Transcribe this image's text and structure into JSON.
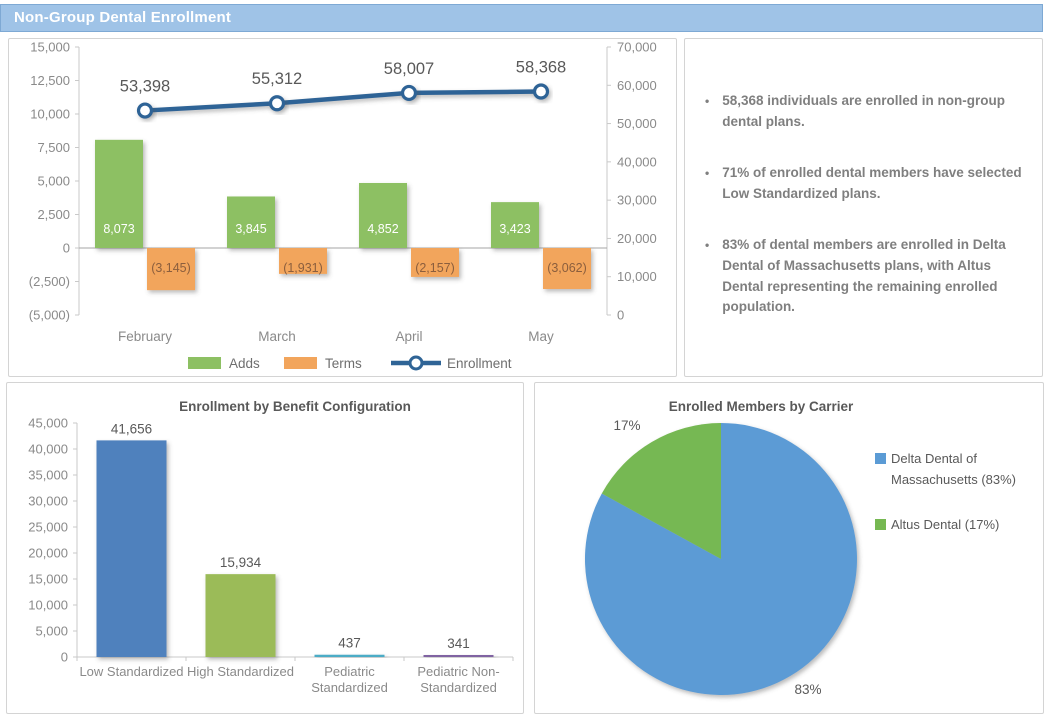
{
  "header": {
    "title": "Non-Group Dental Enrollment",
    "accent_color": "#9FC3E7"
  },
  "insights": {
    "bullets": [
      "58,368 individuals are enrolled in non-group dental plans.",
      "71% of enrolled dental members have selected Low Standardized plans.",
      "83% of dental members are enrolled in Delta Dental of Massachusetts plans, with Altus Dental representing the remaining enrolled population."
    ]
  },
  "chart_data": [
    {
      "type": "combo",
      "name": "monthly-enrollment-trend",
      "categories": [
        "February",
        "March",
        "April",
        "May"
      ],
      "series": [
        {
          "name": "Adds",
          "type": "bar",
          "axis": "left",
          "values": [
            8073,
            3845,
            4852,
            3423
          ],
          "labels": [
            "8,073",
            "3,845",
            "4,852",
            "3,423"
          ],
          "color": "#8DC063",
          "label_color": "#FFFFFF"
        },
        {
          "name": "Terms",
          "type": "bar",
          "axis": "left",
          "values": [
            -3145,
            -1931,
            -2157,
            -3062
          ],
          "labels": [
            "(3,145)",
            "(1,931)",
            "(2,157)",
            "(3,062)"
          ],
          "color": "#F2A55C",
          "label_color": "#8B5E3D"
        },
        {
          "name": "Enrollment",
          "type": "line",
          "axis": "right",
          "values": [
            53398,
            55312,
            58007,
            58368
          ],
          "labels": [
            "53,398",
            "55,312",
            "58,007",
            "58,368"
          ],
          "color": "#2F6496"
        }
      ],
      "left_axis": {
        "min": -5000,
        "max": 15000,
        "tick_values": [
          15000,
          12500,
          10000,
          7500,
          5000,
          2500,
          0,
          -2500,
          -5000
        ],
        "tick_labels": [
          "15,000",
          "12,500",
          "10,000",
          "7,500",
          "5,000",
          "2,500",
          "0",
          "(2,500)",
          "(5,000)"
        ]
      },
      "right_axis": {
        "min": 0,
        "max": 70000,
        "tick_values": [
          70000,
          60000,
          50000,
          40000,
          30000,
          20000,
          10000,
          0
        ],
        "tick_labels": [
          "70,000",
          "60,000",
          "50,000",
          "40,000",
          "30,000",
          "20,000",
          "10,000",
          "0"
        ]
      },
      "legend_position": "bottom",
      "grid": false
    },
    {
      "type": "bar",
      "title": "Enrollment by Benefit Configuration",
      "categories": [
        [
          "Low Standardized"
        ],
        [
          "High Standardized"
        ],
        [
          "Pediatric",
          "Standardized"
        ],
        [
          "Pediatric Non-",
          "Standardized"
        ]
      ],
      "values": [
        41656,
        15934,
        437,
        341
      ],
      "labels": [
        "41,656",
        "15,934",
        "437",
        "341"
      ],
      "bar_colors": [
        "#4F81BD",
        "#9BBB59",
        "#4BACC6",
        "#8064A2"
      ],
      "y_axis": {
        "min": 0,
        "max": 45000,
        "tick_values": [
          45000,
          40000,
          35000,
          30000,
          25000,
          20000,
          15000,
          10000,
          5000,
          0
        ],
        "tick_labels": [
          "45,000",
          "40,000",
          "35,000",
          "30,000",
          "25,000",
          "20,000",
          "15,000",
          "10,000",
          "5,000",
          "0"
        ]
      },
      "grid": false,
      "legend_position": "none"
    },
    {
      "type": "pie",
      "title": "Enrolled Members by Carrier",
      "slices": [
        {
          "name": "Delta Dental of Massachusetts",
          "value": 83,
          "data_label": "83%",
          "legend_lines": [
            "Delta Dental of",
            "Massachusetts (83%)"
          ],
          "color": "#5B9BD5"
        },
        {
          "name": "Altus Dental",
          "value": 17,
          "data_label": "17%",
          "legend_lines": [
            "Altus Dental (17%)"
          ],
          "color": "#76B852"
        }
      ],
      "legend_position": "right"
    }
  ]
}
